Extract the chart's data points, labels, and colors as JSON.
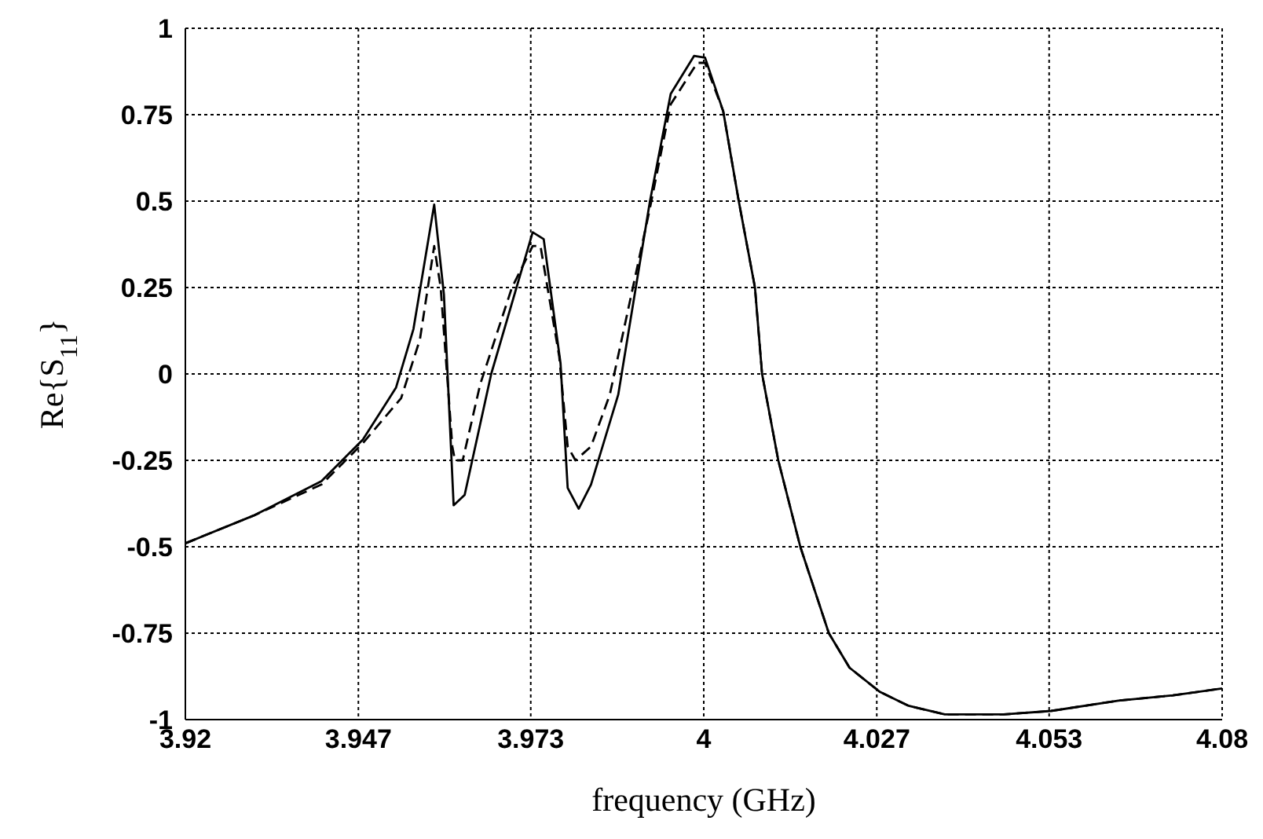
{
  "chart_data": {
    "type": "line",
    "xlabel": "frequency (GHz)",
    "ylabel": "Re{S$_{11}$}",
    "xlim": [
      3.92,
      4.08
    ],
    "xticks": [
      3.92,
      {
        "value": 3.9467,
        "label": "3.947"
      },
      {
        "value": 3.9733,
        "label": "3.973"
      },
      4,
      {
        "value": 4.0267,
        "label": "4.027"
      },
      {
        "value": 4.0533,
        "label": "4.053"
      },
      4.08
    ],
    "ylim": [
      -1,
      1
    ],
    "yticks": [
      -1,
      -0.75,
      -0.5,
      -0.25,
      0,
      0.25,
      0.5,
      0.75,
      1
    ],
    "grid": true,
    "marker": "none",
    "series": [
      {
        "color": "#000000",
        "line_style": "solid",
        "x": [
          3.92,
          3.9305,
          3.941,
          3.9474,
          3.9525,
          3.9552,
          3.9584,
          3.9599,
          3.9614,
          3.9631,
          3.9672,
          3.9736,
          3.9753,
          3.9779,
          3.979,
          3.9807,
          3.9826,
          3.9868,
          3.9917,
          3.9949,
          3.9985,
          4.0002,
          4.003,
          4.0054,
          4.0079,
          4.009,
          4.0115,
          4.0149,
          4.0193,
          4.0225,
          4.0272,
          4.0316,
          4.0372,
          4.0463,
          4.0536,
          4.064,
          4.0724,
          4.08
        ],
        "values": [
          -0.49,
          -0.41,
          -0.31,
          -0.19,
          -0.04,
          0.13,
          0.49,
          0.23,
          -0.38,
          -0.35,
          0.0,
          0.41,
          0.39,
          0.03,
          -0.33,
          -0.39,
          -0.32,
          -0.06,
          0.5,
          0.81,
          0.92,
          0.915,
          0.76,
          0.5,
          0.25,
          0.0,
          -0.25,
          -0.5,
          -0.75,
          -0.85,
          -0.92,
          -0.96,
          -0.985,
          -0.985,
          -0.975,
          -0.945,
          -0.93,
          -0.91
        ]
      },
      {
        "color": "#000000",
        "line_style": "dashed",
        "x": [
          3.92,
          3.9305,
          3.941,
          3.9474,
          3.9533,
          3.9562,
          3.9584,
          3.9594,
          3.9612,
          3.9616,
          3.9628,
          3.9655,
          3.9704,
          3.9736,
          3.9748,
          3.9777,
          3.979,
          3.9802,
          3.9826,
          3.9855,
          3.9917,
          3.9949,
          3.999,
          4.0002,
          4.003,
          4.0054,
          4.0079,
          4.009,
          4.0115,
          4.0149,
          4.0193,
          4.0225,
          4.0272,
          4.0316,
          4.0372,
          4.0463,
          4.0536,
          4.064,
          4.0724,
          4.08
        ],
        "values": [
          -0.49,
          -0.41,
          -0.32,
          -0.2,
          -0.07,
          0.1,
          0.37,
          0.25,
          -0.21,
          -0.25,
          -0.25,
          -0.03,
          0.25,
          0.37,
          0.37,
          0.05,
          -0.21,
          -0.25,
          -0.21,
          -0.06,
          0.48,
          0.78,
          0.9,
          0.9,
          0.76,
          0.5,
          0.25,
          0.0,
          -0.25,
          -0.5,
          -0.75,
          -0.85,
          -0.92,
          -0.96,
          -0.985,
          -0.985,
          -0.975,
          -0.945,
          -0.93,
          -0.91
        ]
      }
    ]
  }
}
